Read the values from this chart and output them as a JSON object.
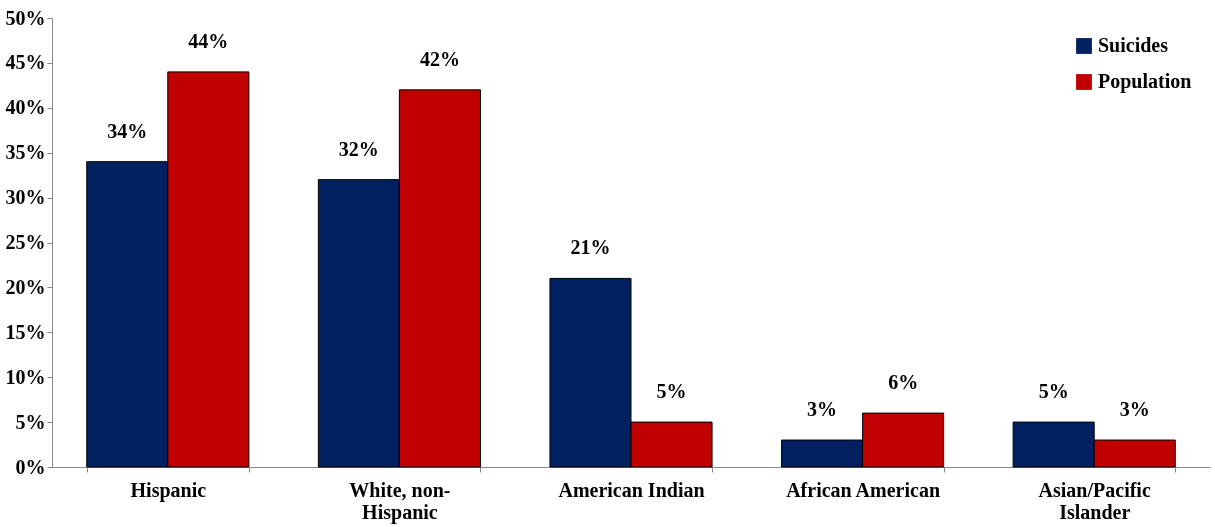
{
  "chart_data": {
    "type": "bar",
    "categories": [
      "Hispanic",
      "White, non-Hispanic",
      "American Indian",
      "African American",
      "Asian/Pacific Islander"
    ],
    "series": [
      {
        "name": "Suicides",
        "color": "#002060",
        "values": [
          34,
          32,
          21,
          3,
          5
        ],
        "value_labels": [
          "34%",
          "32%",
          "21%",
          "3%",
          "5%"
        ]
      },
      {
        "name": "Population",
        "color": "#c00000",
        "values": [
          44,
          42,
          5,
          6,
          3
        ],
        "value_labels": [
          "44%",
          "42%",
          "5%",
          "6%",
          "3%"
        ]
      }
    ],
    "ylim": [
      0,
      50
    ],
    "yticks": [
      {
        "value": 0,
        "label": "0%"
      },
      {
        "value": 5,
        "label": "5%"
      },
      {
        "value": 10,
        "label": "10%"
      },
      {
        "value": 15,
        "label": "15%"
      },
      {
        "value": 20,
        "label": "20%"
      },
      {
        "value": 25,
        "label": "25%"
      },
      {
        "value": 30,
        "label": "30%"
      },
      {
        "value": 35,
        "label": "35%"
      },
      {
        "value": 40,
        "label": "40%"
      },
      {
        "value": 45,
        "label": "45%"
      },
      {
        "value": 50,
        "label": "50%"
      }
    ],
    "legend": "top right",
    "grid": false
  }
}
